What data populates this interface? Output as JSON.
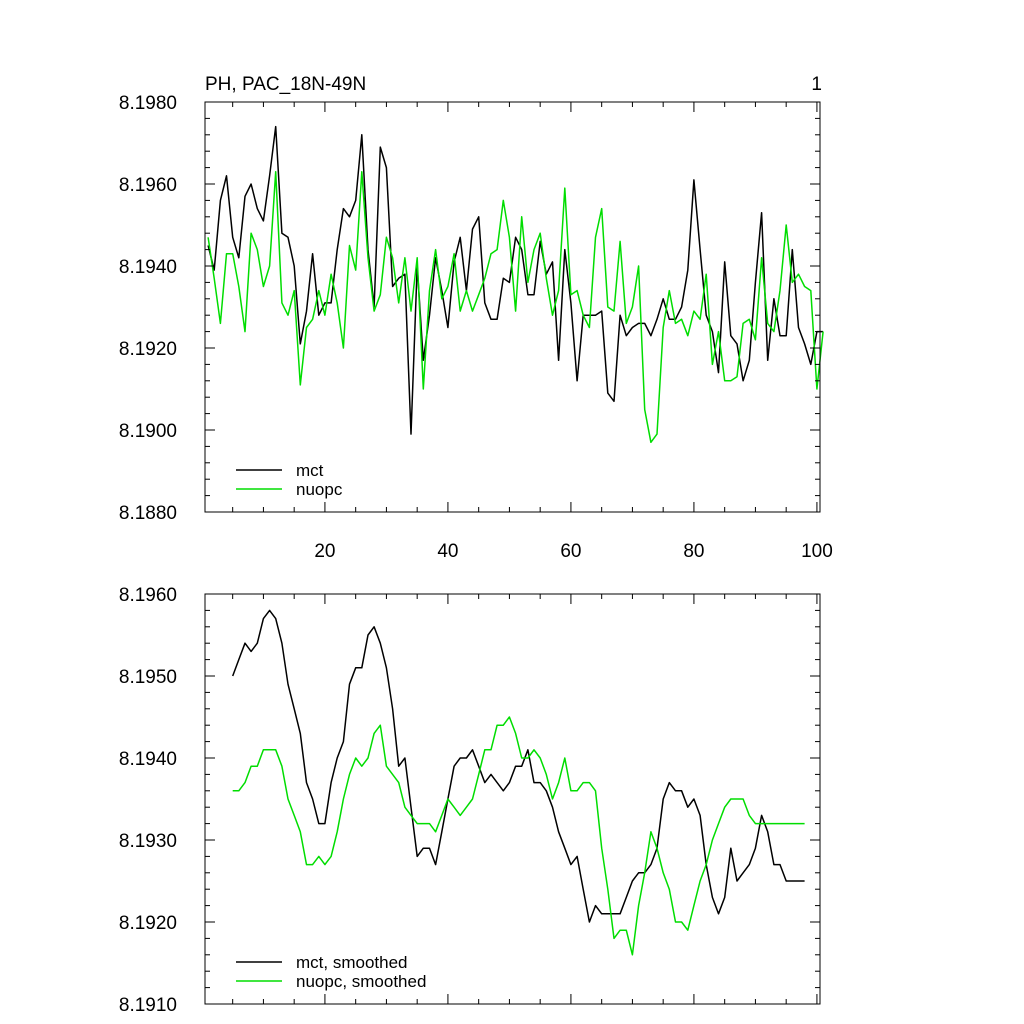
{
  "figure": {
    "title": "PH, PAC_18N-49N",
    "panel_number": "1"
  },
  "colors": {
    "mct": "#000000",
    "nuopc": "#00dd00"
  },
  "chart_data": [
    {
      "type": "line",
      "title": "PH, PAC_18N-49N",
      "xlabel": "",
      "ylabel": "",
      "xlim": [
        0.5,
        100.5
      ],
      "ylim": [
        8.188,
        8.198
      ],
      "xticks": [
        20,
        40,
        60,
        80,
        100
      ],
      "xtick_labels": [
        "20",
        "40",
        "60",
        "80",
        "100"
      ],
      "yticks": [
        8.188,
        8.19,
        8.192,
        8.194,
        8.196,
        8.198
      ],
      "ytick_labels": [
        "8.1880",
        "8.1900",
        "8.1920",
        "8.1940",
        "8.1960",
        "8.1980"
      ],
      "legend_position": "bottom-left",
      "series": [
        {
          "name": "mct",
          "color": "#000000",
          "x": [
            1,
            2,
            3,
            4,
            5,
            6,
            7,
            8,
            9,
            10,
            11,
            12,
            13,
            14,
            15,
            16,
            17,
            18,
            19,
            20,
            21,
            22,
            23,
            24,
            25,
            26,
            27,
            28,
            29,
            30,
            31,
            32,
            33,
            34,
            35,
            36,
            37,
            38,
            39,
            40,
            41,
            42,
            43,
            44,
            45,
            46,
            47,
            48,
            49,
            50,
            51,
            52,
            53,
            54,
            55,
            56,
            57,
            58,
            59,
            60,
            61,
            62,
            63,
            64,
            65,
            66,
            67,
            68,
            69,
            70,
            71,
            72,
            73,
            74,
            75,
            76,
            77,
            78,
            79,
            80,
            81,
            82,
            83,
            84,
            85,
            86,
            87,
            88,
            89,
            90,
            91,
            92,
            93,
            94,
            95,
            96,
            97,
            98,
            99,
            100,
            101
          ],
          "values": [
            8.1945,
            8.1939,
            8.1956,
            8.1962,
            8.1947,
            8.1942,
            8.1957,
            8.196,
            8.1954,
            8.1951,
            8.1962,
            8.1974,
            8.1948,
            8.1947,
            8.194,
            8.1921,
            8.1929,
            8.1943,
            8.1928,
            8.1931,
            8.1931,
            8.1944,
            8.1954,
            8.1952,
            8.1956,
            8.1972,
            8.1944,
            8.193,
            8.1969,
            8.1964,
            8.1935,
            8.1937,
            8.1938,
            8.1899,
            8.194,
            8.1917,
            8.1928,
            8.1942,
            8.1934,
            8.1925,
            8.1941,
            8.1947,
            8.1934,
            8.1949,
            8.1952,
            8.1931,
            8.1927,
            8.1927,
            8.1937,
            8.1936,
            8.1947,
            8.1944,
            8.1933,
            8.1933,
            8.1946,
            8.1938,
            8.1941,
            8.1917,
            8.1944,
            8.1931,
            8.1912,
            8.1928,
            8.1928,
            8.1928,
            8.1929,
            8.1909,
            8.1907,
            8.1928,
            8.1923,
            8.1925,
            8.1926,
            8.1926,
            8.1923,
            8.1927,
            8.1932,
            8.1927,
            8.1927,
            8.193,
            8.1939,
            8.1961,
            8.1944,
            8.1928,
            8.1924,
            8.1914,
            8.1941,
            8.1923,
            8.1921,
            8.1912,
            8.1917,
            8.1936,
            8.1953,
            8.1917,
            8.1932,
            8.1923,
            8.1923,
            8.1944,
            8.1925,
            8.1921,
            8.1916,
            8.1924,
            8.1924
          ]
        },
        {
          "name": "nuopc",
          "color": "#00dd00",
          "x": [
            1,
            2,
            3,
            4,
            5,
            6,
            7,
            8,
            9,
            10,
            11,
            12,
            13,
            14,
            15,
            16,
            17,
            18,
            19,
            20,
            21,
            22,
            23,
            24,
            25,
            26,
            27,
            28,
            29,
            30,
            31,
            32,
            33,
            34,
            35,
            36,
            37,
            38,
            39,
            40,
            41,
            42,
            43,
            44,
            45,
            46,
            47,
            48,
            49,
            50,
            51,
            52,
            53,
            54,
            55,
            56,
            57,
            58,
            59,
            60,
            61,
            62,
            63,
            64,
            65,
            66,
            67,
            68,
            69,
            70,
            71,
            72,
            73,
            74,
            75,
            76,
            77,
            78,
            79,
            80,
            81,
            82,
            83,
            84,
            85,
            86,
            87,
            88,
            89,
            90,
            91,
            92,
            93,
            94,
            95,
            96,
            97,
            98,
            99,
            100,
            101
          ],
          "values": [
            8.1947,
            8.1937,
            8.1926,
            8.1943,
            8.1943,
            8.1935,
            8.1924,
            8.1948,
            8.1944,
            8.1935,
            8.194,
            8.1963,
            8.1931,
            8.1928,
            8.1934,
            8.1911,
            8.1925,
            8.1927,
            8.1934,
            8.1928,
            8.1938,
            8.1931,
            8.192,
            8.1945,
            8.1939,
            8.1963,
            8.1942,
            8.1929,
            8.1933,
            8.1947,
            8.1942,
            8.1931,
            8.1942,
            8.1929,
            8.1942,
            8.191,
            8.1934,
            8.1944,
            8.1932,
            8.1935,
            8.1943,
            8.1929,
            8.1934,
            8.1929,
            8.1933,
            8.1937,
            8.1943,
            8.1944,
            8.1956,
            8.1947,
            8.1929,
            8.1952,
            8.1936,
            8.1944,
            8.1948,
            8.1937,
            8.1928,
            8.1934,
            8.1959,
            8.1933,
            8.1934,
            8.1928,
            8.1925,
            8.1947,
            8.1954,
            8.193,
            8.1929,
            8.1946,
            8.1926,
            8.193,
            8.194,
            8.1905,
            8.1897,
            8.1899,
            8.1925,
            8.1934,
            8.1926,
            8.1927,
            8.1923,
            8.1929,
            8.1927,
            8.1938,
            8.1916,
            8.1924,
            8.1912,
            8.1912,
            8.1913,
            8.1926,
            8.1927,
            8.1922,
            8.1942,
            8.1926,
            8.1924,
            8.1934,
            8.195,
            8.1936,
            8.1938,
            8.1935,
            8.1934,
            8.191,
            8.1924
          ]
        }
      ]
    },
    {
      "type": "line",
      "title": "",
      "xlabel": "",
      "ylabel": "",
      "xlim": [
        0.5,
        100.5
      ],
      "ylim": [
        8.191,
        8.196
      ],
      "xticks": [
        20,
        40,
        60,
        80,
        100
      ],
      "xtick_labels": [],
      "yticks": [
        8.191,
        8.192,
        8.193,
        8.194,
        8.195,
        8.196
      ],
      "ytick_labels": [
        "8.1910",
        "8.1920",
        "8.1930",
        "8.1940",
        "8.1950",
        "8.1960"
      ],
      "legend_position": "bottom-left",
      "series": [
        {
          "name": "mct, smoothed",
          "color": "#000000",
          "x": [
            5,
            6,
            7,
            8,
            9,
            10,
            11,
            12,
            13,
            14,
            15,
            16,
            17,
            18,
            19,
            20,
            21,
            22,
            23,
            24,
            25,
            26,
            27,
            28,
            29,
            30,
            31,
            32,
            33,
            34,
            35,
            36,
            37,
            38,
            39,
            40,
            41,
            42,
            43,
            44,
            45,
            46,
            47,
            48,
            49,
            50,
            51,
            52,
            53,
            54,
            55,
            56,
            57,
            58,
            59,
            60,
            61,
            62,
            63,
            64,
            65,
            66,
            67,
            68,
            69,
            70,
            71,
            72,
            73,
            74,
            75,
            76,
            77,
            78,
            79,
            80,
            81,
            82,
            83,
            84,
            85,
            86,
            87,
            88,
            89,
            90,
            91,
            92,
            93,
            94,
            95,
            96,
            97,
            98
          ],
          "values": [
            8.195,
            8.1952,
            8.1954,
            8.1953,
            8.1954,
            8.1957,
            8.1958,
            8.1957,
            8.1954,
            8.1949,
            8.1946,
            8.1943,
            8.1937,
            8.1935,
            8.1932,
            8.1932,
            8.1937,
            8.194,
            8.1942,
            8.1949,
            8.1951,
            8.1951,
            8.1955,
            8.1956,
            8.1954,
            8.1951,
            8.1946,
            8.1939,
            8.194,
            8.1934,
            8.1928,
            8.1929,
            8.1929,
            8.1927,
            8.1931,
            8.1935,
            8.1939,
            8.194,
            8.194,
            8.1941,
            8.1939,
            8.1937,
            8.1938,
            8.1937,
            8.1936,
            8.1937,
            8.1939,
            8.1939,
            8.1941,
            8.1937,
            8.1937,
            8.1936,
            8.1934,
            8.1931,
            8.1929,
            8.1927,
            8.1928,
            8.1924,
            8.192,
            8.1922,
            8.1921,
            8.1921,
            8.1921,
            8.1921,
            8.1923,
            8.1925,
            8.1926,
            8.1926,
            8.1927,
            8.1929,
            8.1935,
            8.1937,
            8.1936,
            8.1936,
            8.1934,
            8.1935,
            8.1933,
            8.1927,
            8.1923,
            8.1921,
            8.1923,
            8.1929,
            8.1925,
            8.1926,
            8.1927,
            8.1929,
            8.1933,
            8.1931,
            8.1927,
            8.1927,
            8.1925,
            8.1925,
            8.1925,
            8.1925
          ]
        },
        {
          "name": "nuopc, smoothed",
          "color": "#00dd00",
          "x": [
            5,
            6,
            7,
            8,
            9,
            10,
            11,
            12,
            13,
            14,
            15,
            16,
            17,
            18,
            19,
            20,
            21,
            22,
            23,
            24,
            25,
            26,
            27,
            28,
            29,
            30,
            31,
            32,
            33,
            34,
            35,
            36,
            37,
            38,
            39,
            40,
            41,
            42,
            43,
            44,
            45,
            46,
            47,
            48,
            49,
            50,
            51,
            52,
            53,
            54,
            55,
            56,
            57,
            58,
            59,
            60,
            61,
            62,
            63,
            64,
            65,
            66,
            67,
            68,
            69,
            70,
            71,
            72,
            73,
            74,
            75,
            76,
            77,
            78,
            79,
            80,
            81,
            82,
            83,
            84,
            85,
            86,
            87,
            88,
            89,
            90,
            91,
            92,
            93,
            94,
            95,
            96,
            97,
            98
          ],
          "values": [
            8.1936,
            8.1936,
            8.1937,
            8.1939,
            8.1939,
            8.1941,
            8.1941,
            8.1941,
            8.1939,
            8.1935,
            8.1933,
            8.1931,
            8.1927,
            8.1927,
            8.1928,
            8.1927,
            8.1928,
            8.1931,
            8.1935,
            8.1938,
            8.194,
            8.1939,
            8.194,
            8.1943,
            8.1944,
            8.1939,
            8.1938,
            8.1937,
            8.1934,
            8.1933,
            8.1932,
            8.1932,
            8.1932,
            8.1931,
            8.1933,
            8.1935,
            8.1934,
            8.1933,
            8.1934,
            8.1935,
            8.1938,
            8.1941,
            8.1941,
            8.1944,
            8.1944,
            8.1945,
            8.1943,
            8.194,
            8.194,
            8.1941,
            8.194,
            8.1938,
            8.1935,
            8.1937,
            8.194,
            8.1936,
            8.1936,
            8.1937,
            8.1937,
            8.1936,
            8.1929,
            8.1924,
            8.1918,
            8.1919,
            8.1919,
            8.1916,
            8.1922,
            8.1926,
            8.1931,
            8.1929,
            8.1926,
            8.1924,
            8.192,
            8.192,
            8.1919,
            8.1922,
            8.1925,
            8.1927,
            8.193,
            8.1932,
            8.1934,
            8.1935,
            8.1935,
            8.1935,
            8.1933,
            8.1932,
            8.1932,
            8.1932,
            8.1932,
            8.1932,
            8.1932,
            8.1932,
            8.1932,
            8.1932
          ]
        }
      ]
    }
  ]
}
